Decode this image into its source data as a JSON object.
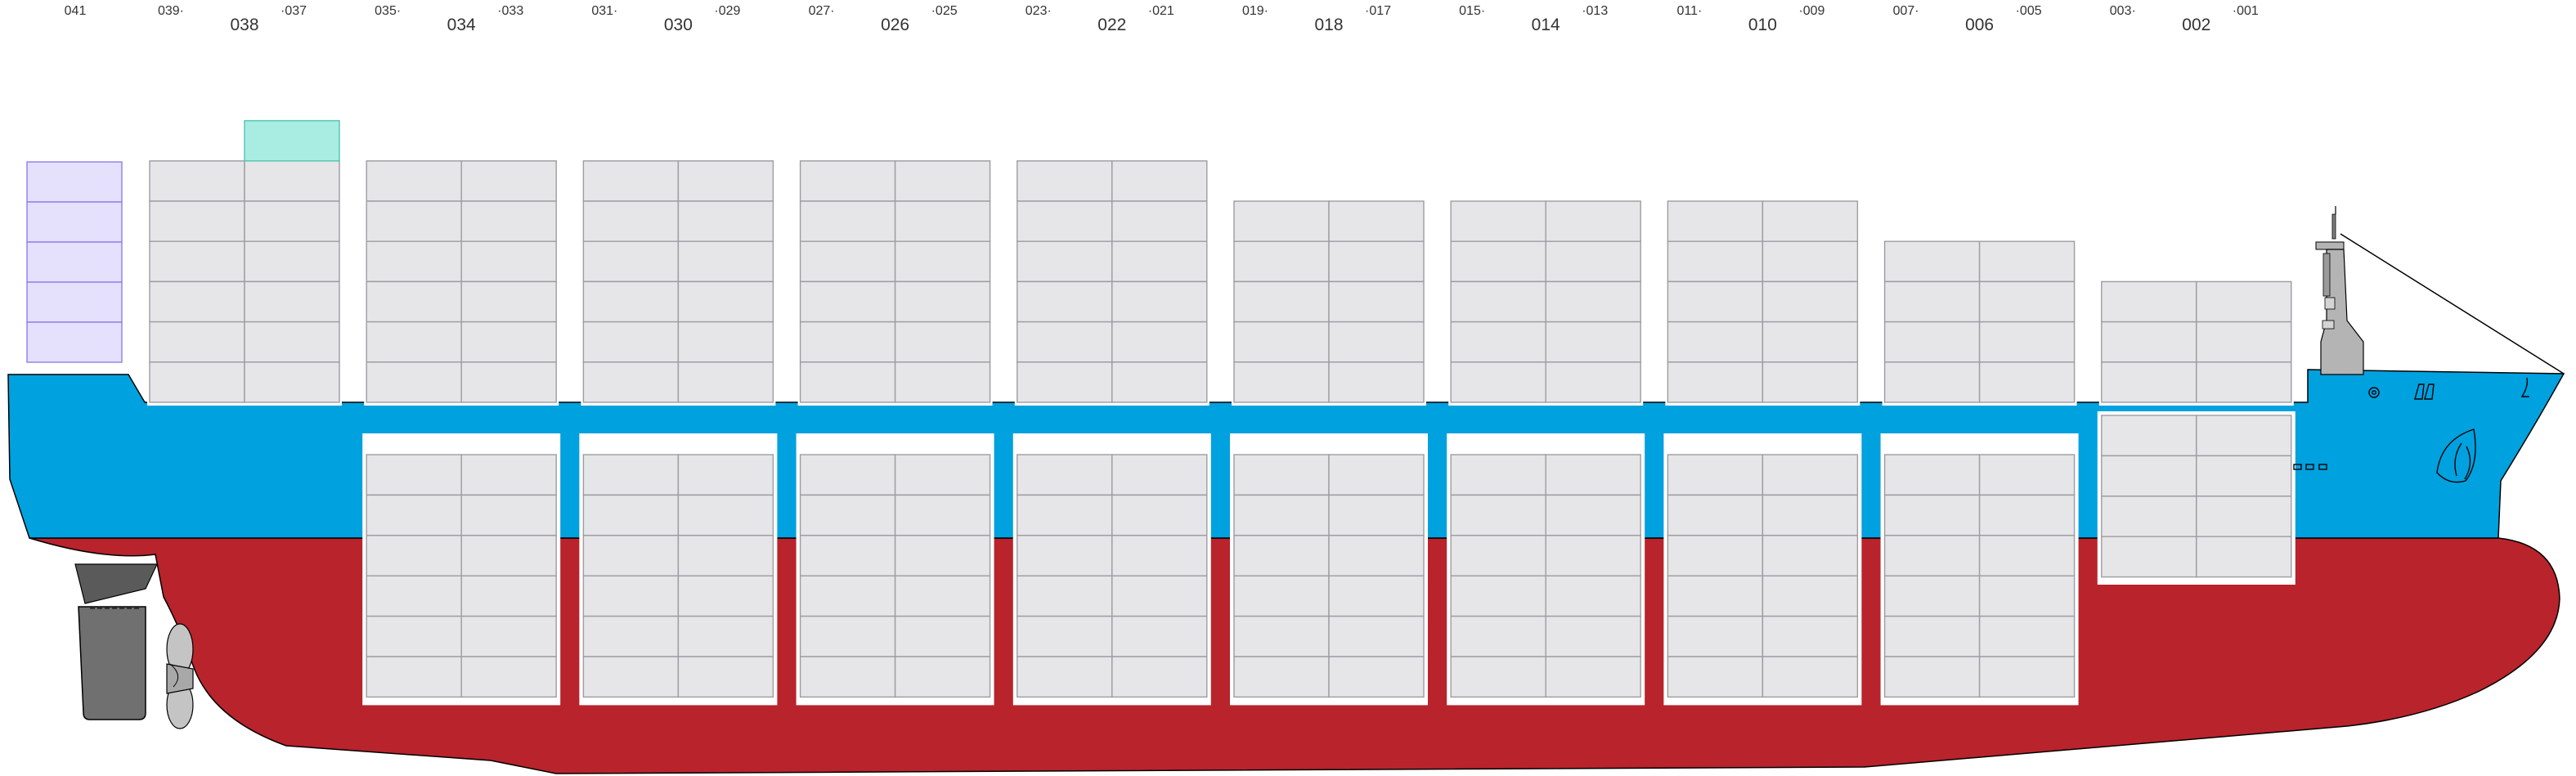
{
  "ship": {
    "colors": {
      "hull_upper": "#00a1df",
      "hull_lower": "#b8232c",
      "container": "#e6e6e8",
      "container_stroke": "#9c9ca2",
      "reefer": "#a8ece2",
      "special": "#e5e0fb",
      "special_stroke": "#8d80e8",
      "rudder": "#707070",
      "propeller": "#c4c4c4",
      "mast": "#b4b4b4"
    },
    "bays": [
      {
        "number": "038",
        "odd_aft": "039",
        "odd_fwd": "037",
        "deck_tiers": 6,
        "hold_tiers": 0,
        "reefer_top": true
      },
      {
        "number": "034",
        "odd_aft": "035",
        "odd_fwd": "033",
        "deck_tiers": 6,
        "hold_tiers": 6,
        "reefer_top": false
      },
      {
        "number": "030",
        "odd_aft": "031",
        "odd_fwd": "029",
        "deck_tiers": 6,
        "hold_tiers": 6,
        "reefer_top": false
      },
      {
        "number": "026",
        "odd_aft": "027",
        "odd_fwd": "025",
        "deck_tiers": 6,
        "hold_tiers": 6,
        "reefer_top": false
      },
      {
        "number": "022",
        "odd_aft": "023",
        "odd_fwd": "021",
        "deck_tiers": 6,
        "hold_tiers": 6,
        "reefer_top": false
      },
      {
        "number": "018",
        "odd_aft": "019",
        "odd_fwd": "017",
        "deck_tiers": 5,
        "hold_tiers": 6,
        "reefer_top": false
      },
      {
        "number": "014",
        "odd_aft": "015",
        "odd_fwd": "013",
        "deck_tiers": 5,
        "hold_tiers": 6,
        "reefer_top": false
      },
      {
        "number": "010",
        "odd_aft": "011",
        "odd_fwd": "009",
        "deck_tiers": 5,
        "hold_tiers": 6,
        "reefer_top": false
      },
      {
        "number": "006",
        "odd_aft": "007",
        "odd_fwd": "005",
        "deck_tiers": 4,
        "hold_tiers": 6,
        "reefer_top": false
      },
      {
        "number": "002",
        "odd_aft": "003",
        "odd_fwd": "001",
        "deck_tiers": 3,
        "hold_tiers": 4,
        "reefer_top": false
      }
    ],
    "aft_bay": {
      "label": "041",
      "tiers": 5
    }
  }
}
